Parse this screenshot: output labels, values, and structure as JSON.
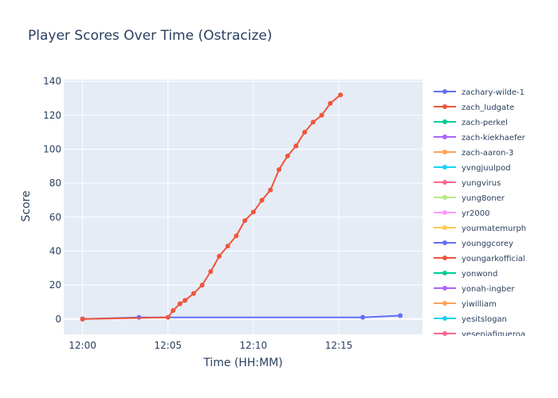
{
  "chart_data": {
    "type": "line",
    "title": "Player Scores Over Time (Ostracize)",
    "xlabel": "Time (HH:MM)",
    "ylabel": "Score",
    "x_unit": "minutes after 12:00",
    "xlim": [
      -1.1,
      19.9
    ],
    "ylim": [
      -9,
      141
    ],
    "x_ticks": [
      {
        "value": 0,
        "label": "12:00"
      },
      {
        "value": 5,
        "label": "12:05"
      },
      {
        "value": 10,
        "label": "12:10"
      },
      {
        "value": 15,
        "label": "12:15"
      }
    ],
    "y_ticks": [
      0,
      20,
      40,
      60,
      80,
      100,
      120,
      140
    ],
    "grid": true,
    "legend_position": "right",
    "series": [
      {
        "name": "zachary-wilde-1",
        "color": "#636efa",
        "x": [
          0,
          3.3,
          16.4,
          18.6
        ],
        "y": [
          0,
          1,
          1,
          2
        ]
      },
      {
        "name": "zach_ludgate",
        "color": "#ef553b",
        "x": [
          0,
          5.0,
          5.3,
          5.7,
          6.0,
          6.5,
          7.0,
          7.5,
          8.0,
          8.5,
          9.0,
          9.5,
          10.0,
          10.5,
          11.0,
          11.5,
          12.0,
          12.5,
          13.0,
          13.5,
          14.0,
          14.5,
          15.1
        ],
        "y": [
          0,
          1,
          5,
          9,
          11,
          15,
          20,
          28,
          37,
          43,
          49,
          58,
          63,
          70,
          76,
          88,
          96,
          102,
          110,
          116,
          120,
          127,
          132
        ]
      },
      {
        "name": "zach-perkel",
        "color": "#00cc96",
        "x": [
          0
        ],
        "y": [
          0
        ]
      },
      {
        "name": "zach-kiekhaefer",
        "color": "#ab63fa",
        "x": [
          0
        ],
        "y": [
          0
        ]
      },
      {
        "name": "zach-aaron-3",
        "color": "#ffa15a",
        "x": [
          0
        ],
        "y": [
          0
        ]
      },
      {
        "name": "yvngjuulpod",
        "color": "#19d3f3",
        "x": [
          0
        ],
        "y": [
          0
        ]
      },
      {
        "name": "yungvirus",
        "color": "#ff6692",
        "x": [
          0
        ],
        "y": [
          0
        ]
      },
      {
        "name": "yung8oner",
        "color": "#b6e880",
        "x": [
          0
        ],
        "y": [
          0
        ]
      },
      {
        "name": "yr2000",
        "color": "#ff97ff",
        "x": [
          0
        ],
        "y": [
          0
        ]
      },
      {
        "name": "yourmatemurph",
        "color": "#fecb52",
        "x": [
          0
        ],
        "y": [
          0
        ]
      },
      {
        "name": "younggcorey",
        "color": "#636efa",
        "x": [
          0
        ],
        "y": [
          0
        ]
      },
      {
        "name": "youngarkofficial",
        "color": "#ef553b",
        "x": [
          0
        ],
        "y": [
          0
        ]
      },
      {
        "name": "yonwond",
        "color": "#00cc96",
        "x": [
          0
        ],
        "y": [
          0
        ]
      },
      {
        "name": "yonah-ingber",
        "color": "#ab63fa",
        "x": [
          0
        ],
        "y": [
          0
        ]
      },
      {
        "name": "yiwilliam",
        "color": "#ffa15a",
        "x": [
          0
        ],
        "y": [
          0
        ]
      },
      {
        "name": "yesitslogan",
        "color": "#19d3f3",
        "x": [
          0
        ],
        "y": [
          0
        ]
      },
      {
        "name": "yeseniafigueroa",
        "color": "#ff6692",
        "x": [
          0
        ],
        "y": [
          0
        ]
      }
    ]
  }
}
